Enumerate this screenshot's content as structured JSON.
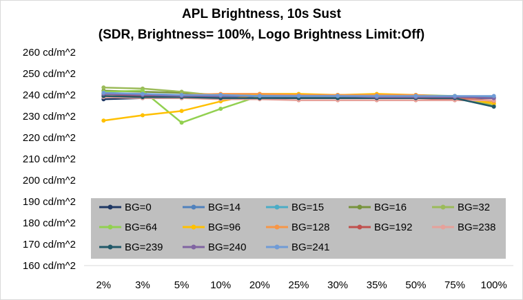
{
  "chart_data": {
    "type": "line",
    "title": "APL Brightness, 10s Sust",
    "subtitle": "(SDR, Brightness= 100%, Logo Brightness Limit:Off)",
    "categories": [
      "2%",
      "3%",
      "5%",
      "10%",
      "20%",
      "25%",
      "30%",
      "35%",
      "50%",
      "75%",
      "100%"
    ],
    "ylim": [
      160,
      260
    ],
    "yticks": [
      "260 cd/m^2",
      "250 cd/m^2",
      "240 cd/m^2",
      "230 cd/m^2",
      "220 cd/m^2",
      "210 cd/m^2",
      "200 cd/m^2",
      "190 cd/m^2",
      "180 cd/m^2",
      "170 cd/m^2",
      "160 cd/m^2"
    ],
    "legend_position": "inside-bottom",
    "series": [
      {
        "name": "BG=0",
        "color": "#1f3864",
        "values": [
          238,
          238.5,
          238.5,
          238.5,
          238.5,
          238.5,
          238.5,
          238.5,
          238.5,
          238.5,
          238.5
        ]
      },
      {
        "name": "BG=14",
        "color": "#4f81bd",
        "values": [
          239,
          239,
          239,
          239,
          239,
          239,
          239,
          239,
          239,
          239,
          239
        ]
      },
      {
        "name": "BG=15",
        "color": "#4bacc6",
        "values": [
          240.5,
          240,
          240,
          239.5,
          239.5,
          239.5,
          239.5,
          239.5,
          239.5,
          239.5,
          239
        ]
      },
      {
        "name": "BG=16",
        "color": "#77933c",
        "values": [
          242,
          241.5,
          241,
          240,
          240,
          240,
          240,
          240,
          239.5,
          239.5,
          236
        ]
      },
      {
        "name": "BG=32",
        "color": "#9bbb59",
        "values": [
          243.5,
          243,
          241.5,
          239.5,
          240,
          240,
          240,
          240,
          240,
          239.5,
          235
        ]
      },
      {
        "name": "BG=64",
        "color": "#92d050",
        "values": [
          241.5,
          242,
          227,
          233.5,
          239.5,
          239.5,
          239.5,
          239.5,
          239.5,
          239.5,
          236
        ]
      },
      {
        "name": "BG=96",
        "color": "#ffc000",
        "values": [
          228,
          230.5,
          232.5,
          237,
          240.5,
          240.5,
          240,
          240.5,
          240,
          239,
          236
        ]
      },
      {
        "name": "BG=128",
        "color": "#f79646",
        "values": [
          240.5,
          240,
          240,
          240.5,
          240.5,
          240,
          240,
          240,
          240,
          239,
          237
        ]
      },
      {
        "name": "BG=192",
        "color": "#c0504d",
        "values": [
          239.5,
          239.5,
          239,
          238.5,
          238.5,
          238.5,
          238.5,
          238.5,
          238.5,
          238,
          237.5
        ]
      },
      {
        "name": "BG=238",
        "color": "#e6a19a",
        "values": [
          239,
          238.5,
          238.5,
          238,
          238,
          237.5,
          237.5,
          237.5,
          237.5,
          237.5,
          237.5
        ]
      },
      {
        "name": "BG=239",
        "color": "#215868",
        "values": [
          239.5,
          239,
          239,
          238.5,
          238.5,
          238.5,
          238.5,
          238.5,
          238.5,
          238.5,
          234.5
        ]
      },
      {
        "name": "BG=240",
        "color": "#8064a2",
        "values": [
          240.5,
          240,
          239.5,
          239.5,
          239.5,
          239.5,
          239.5,
          239,
          239,
          239,
          238.5
        ]
      },
      {
        "name": "BG=241",
        "color": "#6f9bd6",
        "values": [
          241,
          240.5,
          240,
          240,
          239.5,
          239.5,
          239.5,
          239.5,
          239.5,
          239.5,
          239.5
        ]
      }
    ]
  }
}
